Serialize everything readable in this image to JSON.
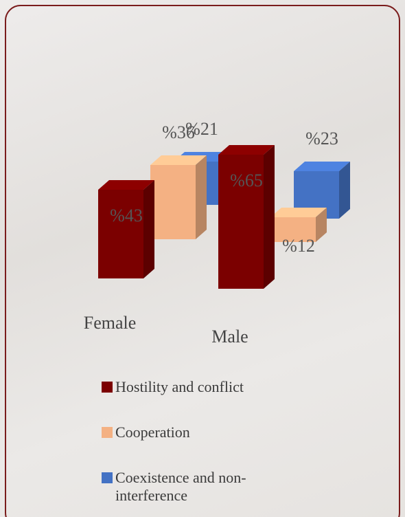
{
  "chart_data": {
    "type": "bar3d",
    "categories": [
      "Female",
      "Male"
    ],
    "series": [
      {
        "name": "Hostility and conflict",
        "color": "#7b0000",
        "values": [
          43,
          65
        ],
        "value_labels": [
          "%43",
          "%65"
        ]
      },
      {
        "name": "Cooperation",
        "color": "#f4b183",
        "values": [
          36,
          12
        ],
        "value_labels": [
          "%36",
          "%12"
        ]
      },
      {
        "name": "Coexistence and non-interference",
        "color": "#4472c4",
        "values": [
          21,
          23
        ],
        "value_labels": [
          "%21",
          "%23"
        ]
      }
    ]
  }
}
